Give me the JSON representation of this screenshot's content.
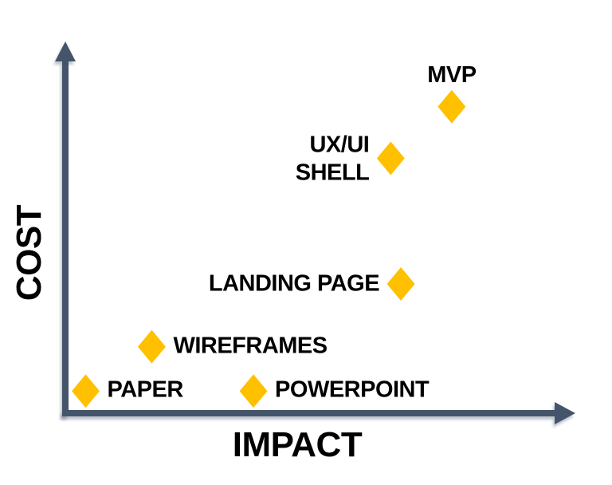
{
  "colors": {
    "background": "#ffffff",
    "axis": "#44546A",
    "axis_shadow": "rgba(96,110,130,0.40)",
    "marker": "#FFC000",
    "label_text": "#000000"
  },
  "chart_data": {
    "type": "scatter",
    "title": "",
    "xlabel": "IMPACT",
    "ylabel": "COST",
    "xlim": [
      0,
      100
    ],
    "ylim": [
      0,
      100
    ],
    "grid": false,
    "legend": null,
    "marker_shape": "diamond",
    "points": [
      {
        "label": "PAPER",
        "x": 4,
        "y": 6,
        "label_position": "right"
      },
      {
        "label": "WIREFRAMES",
        "x": 17,
        "y": 18,
        "label_position": "right"
      },
      {
        "label": "POWERPOINT",
        "x": 37,
        "y": 6,
        "label_position": "right"
      },
      {
        "label": "LANDING PAGE",
        "x": 66,
        "y": 35,
        "label_position": "left"
      },
      {
        "label": "UX/UI\nSHELL",
        "x": 64,
        "y": 69,
        "label_position": "left"
      },
      {
        "label": "MVP",
        "x": 76,
        "y": 83,
        "label_position": "above"
      }
    ]
  }
}
